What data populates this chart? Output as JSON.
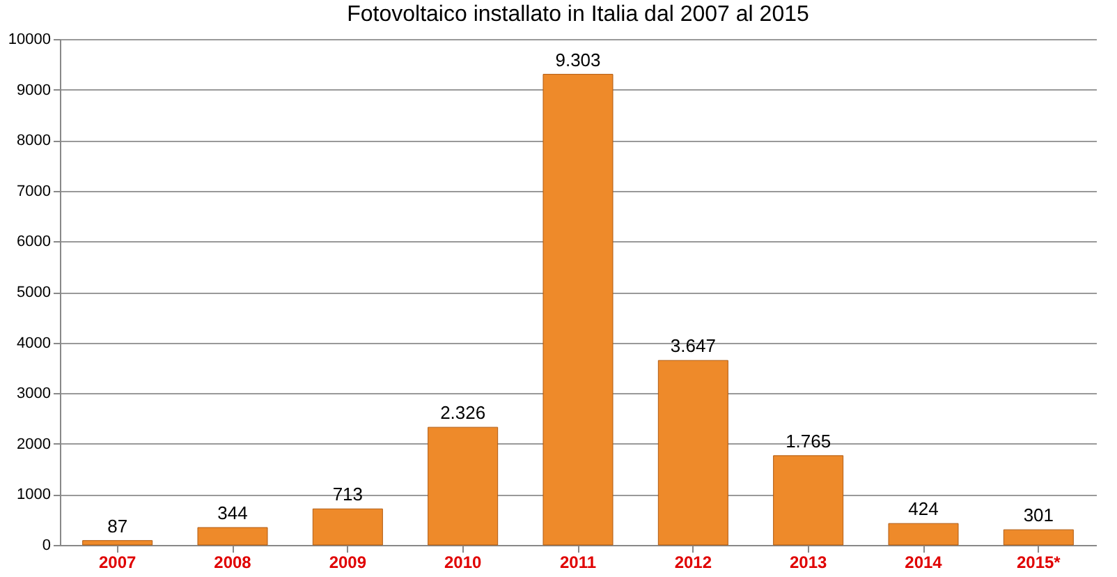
{
  "chart_data": {
    "type": "bar",
    "title": "Fotovoltaico installato in Italia dal 2007 al 2015",
    "categories": [
      "2007",
      "2008",
      "2009",
      "2010",
      "2011",
      "2012",
      "2013",
      "2014",
      "2015*"
    ],
    "values": [
      87,
      344,
      713,
      2326,
      9303,
      3647,
      1765,
      424,
      301
    ],
    "value_labels": [
      "87",
      "344",
      "713",
      "2.326",
      "9.303",
      "3.647",
      "1.765",
      "424",
      "301"
    ],
    "color": "#ee8a2a",
    "ylim": [
      0,
      10000
    ],
    "yticks": [
      0,
      1000,
      2000,
      3000,
      4000,
      5000,
      6000,
      7000,
      8000,
      9000,
      10000
    ],
    "grid": "y"
  }
}
